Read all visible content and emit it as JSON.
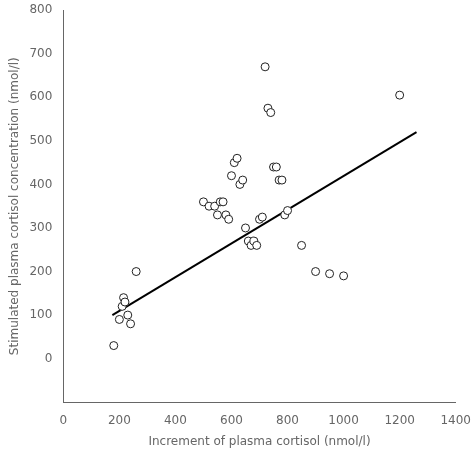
{
  "chart_data": {
    "type": "scatter",
    "xlabel": "Increment of plasma cortisol (nmol/l)",
    "ylabel": "Stimulated plasma cortisol concentration (nmol/l)",
    "series": [
      {
        "type": "line",
        "color": "#000000",
        "x": [
          175,
          1260
        ],
        "values": [
          100,
          520
        ]
      },
      {
        "type": "scatter",
        "color": "#222222",
        "marker": "circle",
        "x": [
          180,
          200,
          210,
          215,
          220,
          230,
          240,
          260,
          500,
          520,
          540,
          550,
          560,
          570,
          580,
          590,
          600,
          610,
          620,
          630,
          640,
          650,
          660,
          670,
          680,
          690,
          700,
          710,
          720,
          730,
          740,
          750,
          760,
          770,
          780,
          790,
          800,
          850,
          900,
          950,
          1000,
          1200
        ],
        "values": [
          30,
          90,
          120,
          140,
          130,
          100,
          80,
          200,
          360,
          350,
          350,
          330,
          360,
          360,
          330,
          320,
          420,
          450,
          460,
          400,
          410,
          300,
          270,
          260,
          270,
          260,
          320,
          325,
          670,
          575,
          565,
          440,
          440,
          410,
          410,
          330,
          340,
          260,
          200,
          195,
          190,
          605
        ]
      }
    ],
    "xlim": [
      0,
      1400
    ],
    "ylim": [
      -100,
      800
    ],
    "xticks": [
      0,
      200,
      400,
      600,
      800,
      1000,
      1200,
      1400
    ],
    "yticks": [
      0,
      100,
      200,
      300,
      400,
      500,
      600,
      700,
      800
    ],
    "grid": false
  }
}
